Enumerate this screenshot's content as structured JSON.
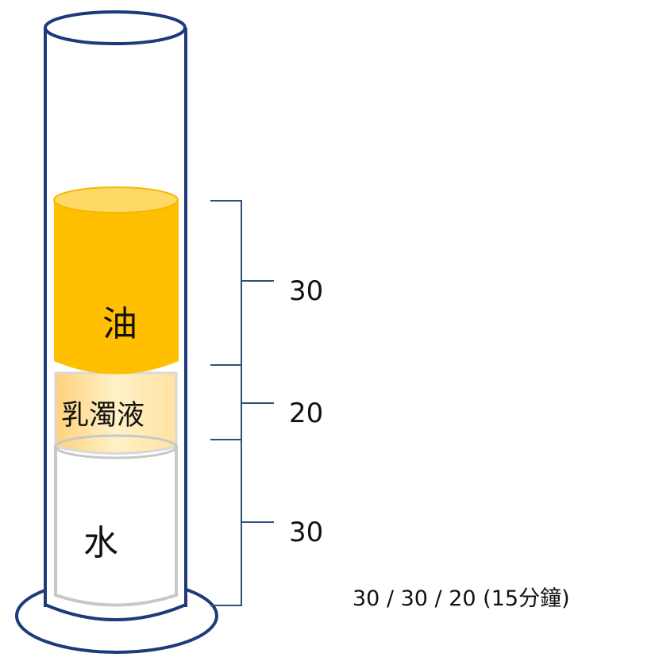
{
  "layers": {
    "oil": {
      "label": "油",
      "color": "#FFBF00",
      "top_color": "#FFD966",
      "measure": "30"
    },
    "emulsion": {
      "label": "乳濁液",
      "color": "#FFE9B8",
      "measure": "20"
    },
    "water": {
      "label": "水",
      "color": "#FFFFFF",
      "measure": "30"
    }
  },
  "caption": "30 / 30 / 20 (15分鐘)",
  "colors": {
    "cylinder_outline": "#1F3A7A",
    "bracket": "#2F4F7A",
    "inner_tube": "#C8C8C8"
  }
}
